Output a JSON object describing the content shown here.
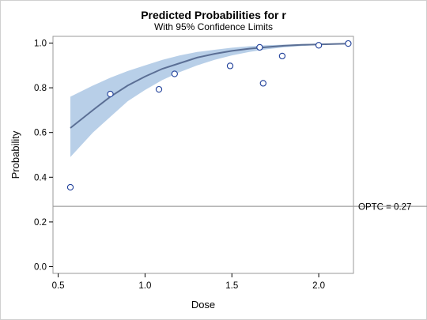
{
  "chart_data": {
    "type": "line",
    "title": "Predicted Probabilities for r",
    "subtitle": "With 95% Confidence Limits",
    "xlabel": "Dose",
    "ylabel": "Probability",
    "xlim": [
      0.47,
      2.2
    ],
    "ylim": [
      -0.03,
      1.03
    ],
    "xticks": [
      0.5,
      1.0,
      1.5,
      2.0
    ],
    "xtick_labels": [
      "0.5",
      "1.0",
      "1.5",
      "2.0"
    ],
    "yticks": [
      0.0,
      0.2,
      0.4,
      0.6,
      0.8,
      1.0
    ],
    "ytick_labels": [
      "0.0",
      "0.2",
      "0.4",
      "0.6",
      "0.8",
      "1.0"
    ],
    "grid": false,
    "series": [
      {
        "kind": "band",
        "x": [
          0.57,
          0.7,
          0.8,
          0.9,
          1.0,
          1.1,
          1.2,
          1.3,
          1.4,
          1.5,
          1.6,
          1.7,
          1.8,
          1.9,
          2.0,
          2.1,
          2.17
        ],
        "lower": [
          0.49,
          0.6,
          0.67,
          0.74,
          0.79,
          0.835,
          0.87,
          0.9,
          0.925,
          0.945,
          0.96,
          0.972,
          0.981,
          0.987,
          0.991,
          0.994,
          0.995
        ],
        "upper": [
          0.76,
          0.81,
          0.845,
          0.875,
          0.9,
          0.925,
          0.945,
          0.96,
          0.97,
          0.979,
          0.986,
          0.99,
          0.993,
          0.995,
          0.997,
          0.998,
          0.998
        ],
        "color": "#b8cfe8"
      },
      {
        "kind": "line",
        "x": [
          0.57,
          0.7,
          0.8,
          0.9,
          1.0,
          1.1,
          1.2,
          1.3,
          1.4,
          1.5,
          1.6,
          1.7,
          1.8,
          1.9,
          2.0,
          2.1,
          2.17
        ],
        "y": [
          0.62,
          0.7,
          0.76,
          0.81,
          0.85,
          0.885,
          0.91,
          0.935,
          0.952,
          0.965,
          0.975,
          0.982,
          0.988,
          0.992,
          0.994,
          0.996,
          0.997
        ],
        "color": "#5b6f95"
      },
      {
        "kind": "scatter",
        "x": [
          0.57,
          0.8,
          1.08,
          1.17,
          1.49,
          1.66,
          1.68,
          1.79,
          2.0,
          2.17
        ],
        "y": [
          0.355,
          0.772,
          0.793,
          0.862,
          0.898,
          0.981,
          0.82,
          0.942,
          0.99,
          0.998
        ],
        "color": "#1f3f99"
      }
    ],
    "reference_line": {
      "y": 0.27,
      "label": "OPTC = 0.27",
      "color": "#8a8a8a"
    }
  }
}
